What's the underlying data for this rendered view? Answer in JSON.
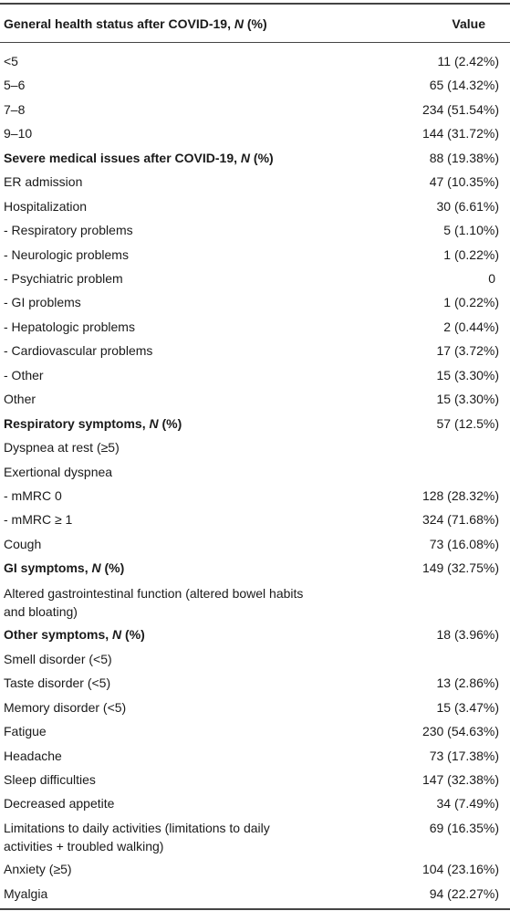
{
  "header": {
    "label_prefix": "General health status after COVID-19, ",
    "label_italic": "N",
    "label_suffix": " (%)",
    "value": "Value"
  },
  "rows": [
    {
      "label": "<5",
      "value": "11 (2.42%)"
    },
    {
      "label": "5–6",
      "value": "65 (14.32%)"
    },
    {
      "label": "7–8",
      "value": "234 (51.54%)"
    },
    {
      "label": "9–10",
      "value": "144 (31.72%)"
    },
    {
      "label_prefix": "Severe medical issues after COVID-19, ",
      "label_italic": "N",
      "label_suffix": " (%)",
      "value": "88 (19.38%)",
      "bold": true
    },
    {
      "label": "ER admission",
      "value": "47 (10.35%)"
    },
    {
      "label": "Hospitalization",
      "value": "30 (6.61%)"
    },
    {
      "label": "- Respiratory problems",
      "value": "5 (1.10%)"
    },
    {
      "label": "- Neurologic problems",
      "value": "1 (0.22%)"
    },
    {
      "label": "- Psychiatric problem",
      "value": "0"
    },
    {
      "label": "- GI problems",
      "value": "1 (0.22%)"
    },
    {
      "label": "- Hepatologic problems",
      "value": "2 (0.44%)"
    },
    {
      "label": "- Cardiovascular problems",
      "value": "17 (3.72%)"
    },
    {
      "label": "- Other",
      "value": "15 (3.30%)"
    },
    {
      "label": "Other",
      "value": "15 (3.30%)"
    },
    {
      "label_prefix": "Respiratory symptoms, ",
      "label_italic": "N",
      "label_suffix": " (%)",
      "value": "57 (12.5%)",
      "bold": true
    },
    {
      "label": "Dyspnea at rest (≥5)",
      "value": ""
    },
    {
      "label": "Exertional dyspnea",
      "value": ""
    },
    {
      "label": "- mMRC 0",
      "value": "128 (28.32%)"
    },
    {
      "label": "- mMRC ≥ 1",
      "value": "324 (71.68%)"
    },
    {
      "label": "Cough",
      "value": "73 (16.08%)"
    },
    {
      "label_prefix": "GI symptoms, ",
      "label_italic": "N",
      "label_suffix": " (%)",
      "value": "149 (32.75%)",
      "bold": true
    },
    {
      "label": "Altered gastrointestinal function (altered bowel habits and bloating)",
      "value": ""
    },
    {
      "label_prefix": "Other symptoms, ",
      "label_italic": "N",
      "label_suffix": " (%)",
      "value": "18 (3.96%)",
      "bold": true
    },
    {
      "label": "Smell disorder (<5)",
      "value": ""
    },
    {
      "label": "Taste disorder (<5)",
      "value": "13 (2.86%)"
    },
    {
      "label": "Memory disorder (<5)",
      "value": "15 (3.47%)"
    },
    {
      "label": "Fatigue",
      "value": "230 (54.63%)"
    },
    {
      "label": "Headache",
      "value": "73 (17.38%)"
    },
    {
      "label": "Sleep difficulties",
      "value": "147 (32.38%)"
    },
    {
      "label": "Decreased appetite",
      "value": "34 (7.49%)"
    },
    {
      "label": "Limitations to daily activities (limitations to daily activities + troubled walking)",
      "value": "69 (16.35%)"
    },
    {
      "label": "Anxiety (≥5)",
      "value": "104 (23.16%)"
    },
    {
      "label": "Myalgia",
      "value": "94 (22.27%)"
    }
  ]
}
